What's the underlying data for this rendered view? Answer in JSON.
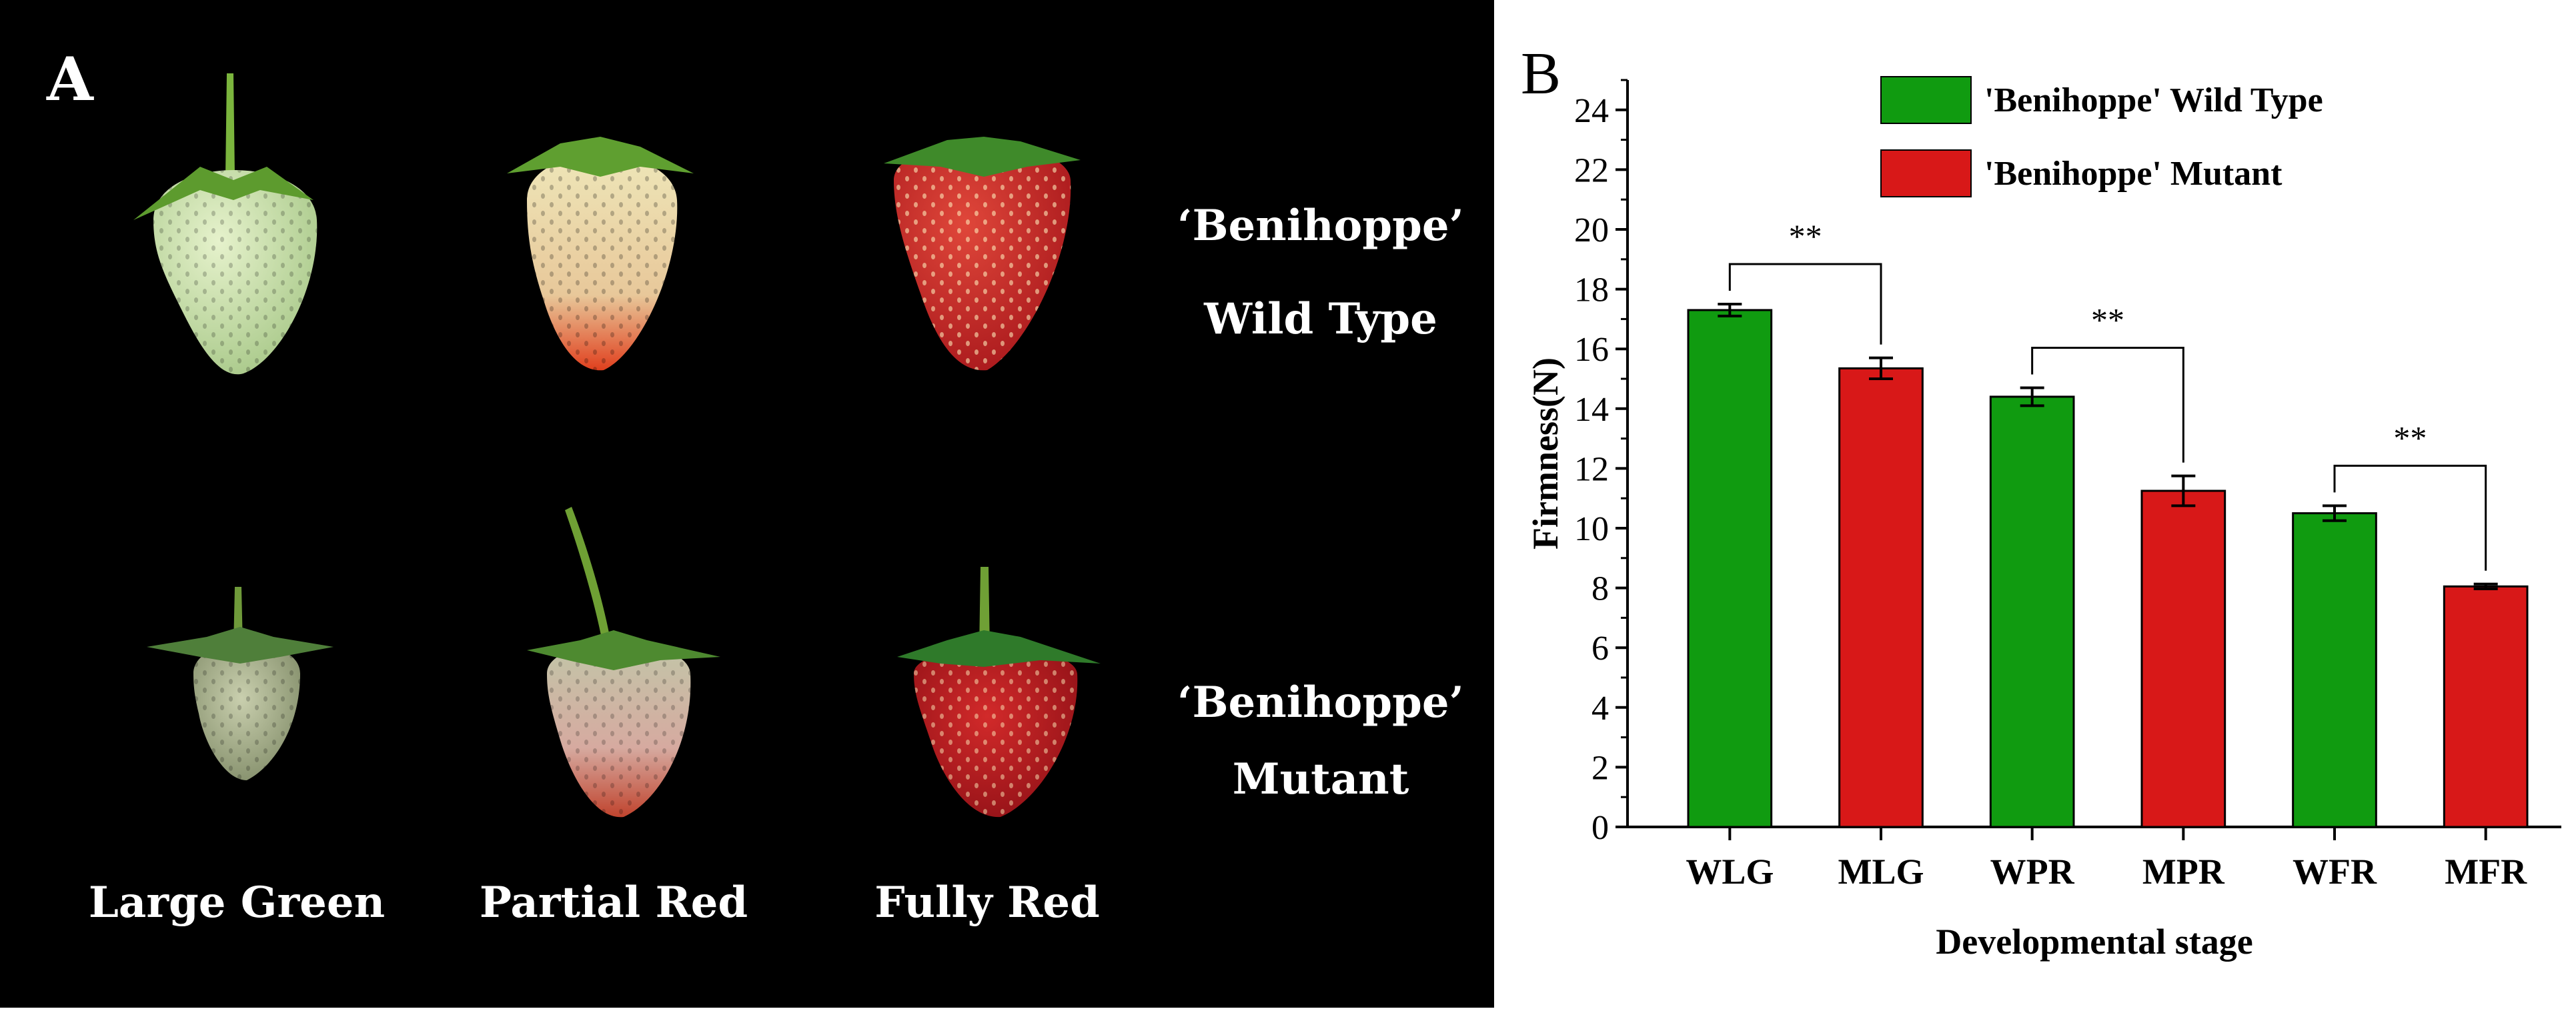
{
  "panel_a": {
    "label": "A",
    "row_labels": [
      {
        "line1": "‘Benihoppe’",
        "line2": "Wild Type"
      },
      {
        "line1": "‘Benihoppe’",
        "line2": "Mutant"
      }
    ],
    "column_labels": [
      "Large Green",
      "Partial Red",
      "Fully Red"
    ]
  },
  "chart_data": {
    "type": "bar",
    "panel_label": "B",
    "categories": [
      "WLG",
      "MLG",
      "WPR",
      "MPR",
      "WFR",
      "MFR"
    ],
    "values": [
      17.3,
      15.35,
      14.4,
      11.25,
      10.5,
      8.05
    ],
    "errors": [
      0.2,
      0.35,
      0.3,
      0.5,
      0.25,
      0.08
    ],
    "bar_series": [
      0,
      1,
      0,
      1,
      0,
      1
    ],
    "series": [
      {
        "name": "'Benihoppe' Wild Type",
        "color": "#109b10"
      },
      {
        "name": "'Benihoppe' Mutant",
        "color": "#d81818"
      }
    ],
    "xlabel": "Developmental stage",
    "ylabel": "Firmness(N)",
    "ylim": [
      0,
      25
    ],
    "yticks": [
      0,
      2,
      4,
      6,
      8,
      10,
      12,
      14,
      16,
      18,
      20,
      22,
      24
    ],
    "grid": false,
    "legend_position": "top",
    "significance": [
      {
        "pair": [
          0,
          1
        ],
        "label": "**"
      },
      {
        "pair": [
          2,
          3
        ],
        "label": "**"
      },
      {
        "pair": [
          4,
          5
        ],
        "label": "**"
      }
    ]
  }
}
